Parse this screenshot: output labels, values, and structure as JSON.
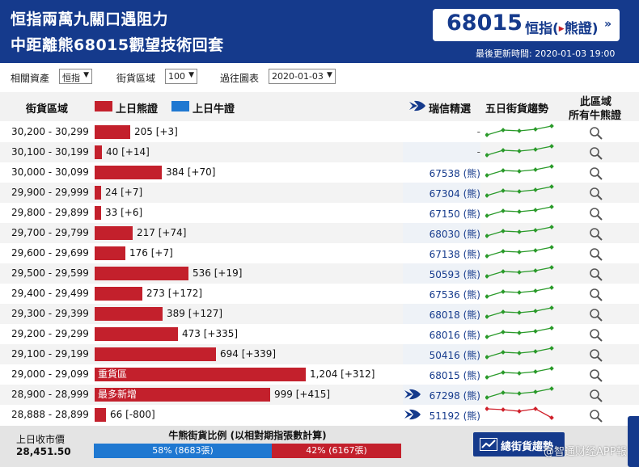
{
  "header": {
    "title_line1": "恒指兩萬九關口遇阻力",
    "title_line2": "中距離熊68015觀望技術回套",
    "price": "68015",
    "instrument": "恒指",
    "instrument_type": "熊證",
    "updated": "最後更新時間: 2020-01-03 19:00"
  },
  "filters": {
    "asset_label": "相關資產",
    "asset_value": "恒指",
    "range_label": "街貨區域",
    "range_value": "100",
    "history_label": "過往圖表",
    "history_value": "2020-01-03"
  },
  "table_head": {
    "range": "街貨區域",
    "bear_legend": "上日熊證",
    "bull_legend": "上日牛證",
    "recommend": "瑞信精選",
    "trend": "五日街貨趨勢",
    "all_line1": "此區域",
    "all_line2": "所有牛熊證"
  },
  "colors": {
    "header": "#153a8c",
    "bear": "#c3202c",
    "bull": "#1f78d1",
    "trend_up": "#2a9a2a",
    "trend_down": "#d0202a"
  },
  "rows": [
    {
      "range": "30,200 - 30,299",
      "value": 205,
      "label": "205 [+3]",
      "tag": "",
      "rec": "-",
      "fish": false,
      "trend": "up"
    },
    {
      "range": "30,100 - 30,199",
      "value": 40,
      "label": "40 [+14]",
      "tag": "",
      "rec": "-",
      "fish": false,
      "trend": "up"
    },
    {
      "range": "30,000 - 30,099",
      "value": 384,
      "label": "384 [+70]",
      "tag": "",
      "rec": "67538 (熊)",
      "fish": false,
      "trend": "up"
    },
    {
      "range": "29,900 - 29,999",
      "value": 24,
      "label": "24 [+7]",
      "tag": "",
      "rec": "67304 (熊)",
      "fish": false,
      "trend": "up"
    },
    {
      "range": "29,800 - 29,899",
      "value": 33,
      "label": "33 [+6]",
      "tag": "",
      "rec": "67150 (熊)",
      "fish": false,
      "trend": "up"
    },
    {
      "range": "29,700 - 29,799",
      "value": 217,
      "label": "217 [+74]",
      "tag": "",
      "rec": "68030 (熊)",
      "fish": false,
      "trend": "up"
    },
    {
      "range": "29,600 - 29,699",
      "value": 176,
      "label": "176 [+7]",
      "tag": "",
      "rec": "67138 (熊)",
      "fish": false,
      "trend": "up"
    },
    {
      "range": "29,500 - 29,599",
      "value": 536,
      "label": "536 [+19]",
      "tag": "",
      "rec": "50593 (熊)",
      "fish": false,
      "trend": "up"
    },
    {
      "range": "29,400 - 29,499",
      "value": 273,
      "label": "273 [+172]",
      "tag": "",
      "rec": "67536 (熊)",
      "fish": false,
      "trend": "up"
    },
    {
      "range": "29,300 - 29,399",
      "value": 389,
      "label": "389 [+127]",
      "tag": "",
      "rec": "68018 (熊)",
      "fish": false,
      "trend": "up"
    },
    {
      "range": "29,200 - 29,299",
      "value": 473,
      "label": "473 [+335]",
      "tag": "",
      "rec": "68016 (熊)",
      "fish": false,
      "trend": "up"
    },
    {
      "range": "29,100 - 29,199",
      "value": 694,
      "label": "694 [+339]",
      "tag": "",
      "rec": "50416 (熊)",
      "fish": false,
      "trend": "up"
    },
    {
      "range": "29,000 - 29,099",
      "value": 1204,
      "label": "1,204 [+312]",
      "tag": "重貨區",
      "rec": "68015 (熊)",
      "fish": false,
      "trend": "up"
    },
    {
      "range": "28,900 - 28,999",
      "value": 999,
      "label": "999 [+415]",
      "tag": "最多新增",
      "rec": "67298 (熊)",
      "fish": true,
      "trend": "up"
    },
    {
      "range": "28,888 - 28,899",
      "value": 66,
      "label": "66 [-800]",
      "tag": "",
      "rec": "51192 (熊)",
      "fish": true,
      "trend": "down"
    }
  ],
  "footer": {
    "close_label": "上日收市價",
    "close_value": "28,451.50",
    "ratio_title": "牛熊街貨比例 (以相對期指張數計算)",
    "bull_pct": 58,
    "bull_label": "58% (8683張)",
    "bear_pct": 42,
    "bear_label": "42% (6167張)",
    "trend_button": "總街貨趨勢",
    "watermark": "@智通财经APP",
    "watermark_cut": "報"
  }
}
